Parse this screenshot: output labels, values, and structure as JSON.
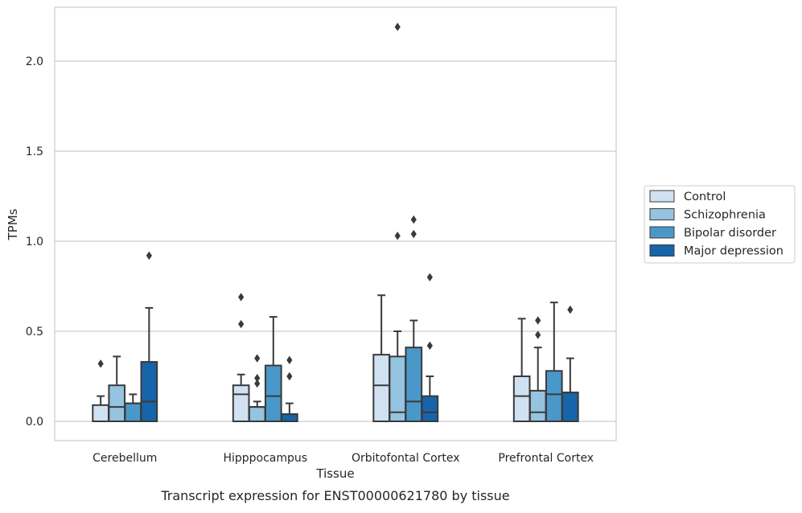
{
  "chart_data": {
    "type": "boxplot",
    "title": "Transcript expression for ENST00000621780 by tissue",
    "xlabel": "Tissue",
    "ylabel": "TPMs",
    "ylim": [
      -0.1,
      2.32
    ],
    "yticks": [
      0.0,
      0.5,
      1.0,
      1.5,
      2.0
    ],
    "ytick_labels": [
      "0.0",
      "0.5",
      "1.0",
      "1.5",
      "2.0"
    ],
    "grid": "horizontal",
    "legend_position": "right",
    "categories": [
      "Cerebellum",
      "Hipppocampus",
      "Orbitofontal Cortex",
      "Prefrontal Cortex"
    ],
    "series": [
      {
        "name": "Control",
        "color": "#d0e1f2",
        "boxes": [
          {
            "whislo": 0.0,
            "q1": 0.0,
            "med": 0.0,
            "q3": 0.09,
            "whishi": 0.14,
            "fliers": [
              0.32
            ]
          },
          {
            "whislo": 0.0,
            "q1": 0.0,
            "med": 0.15,
            "q3": 0.2,
            "whishi": 0.26,
            "fliers": [
              0.54,
              0.69
            ]
          },
          {
            "whislo": 0.0,
            "q1": 0.0,
            "med": 0.2,
            "q3": 0.37,
            "whishi": 0.7,
            "fliers": []
          },
          {
            "whislo": 0.0,
            "q1": 0.0,
            "med": 0.14,
            "q3": 0.25,
            "whishi": 0.57,
            "fliers": []
          }
        ]
      },
      {
        "name": "Schizophrenia",
        "color": "#94c4df",
        "boxes": [
          {
            "whislo": 0.0,
            "q1": 0.0,
            "med": 0.08,
            "q3": 0.2,
            "whishi": 0.36,
            "fliers": []
          },
          {
            "whislo": 0.0,
            "q1": 0.0,
            "med": 0.08,
            "q3": 0.08,
            "whishi": 0.11,
            "fliers": [
              0.21,
              0.24,
              0.35
            ]
          },
          {
            "whislo": 0.0,
            "q1": 0.0,
            "med": 0.05,
            "q3": 0.36,
            "whishi": 0.5,
            "fliers": [
              1.03,
              2.19
            ]
          },
          {
            "whislo": 0.0,
            "q1": 0.0,
            "med": 0.05,
            "q3": 0.17,
            "whishi": 0.41,
            "fliers": [
              0.48,
              0.56
            ]
          }
        ]
      },
      {
        "name": "Bipolar disorder",
        "color": "#4a98c9",
        "boxes": [
          {
            "whislo": 0.0,
            "q1": 0.0,
            "med": 0.1,
            "q3": 0.1,
            "whishi": 0.15,
            "fliers": []
          },
          {
            "whislo": 0.0,
            "q1": 0.0,
            "med": 0.14,
            "q3": 0.31,
            "whishi": 0.58,
            "fliers": []
          },
          {
            "whislo": 0.0,
            "q1": 0.0,
            "med": 0.11,
            "q3": 0.41,
            "whishi": 0.56,
            "fliers": [
              1.04,
              1.12
            ]
          },
          {
            "whislo": 0.0,
            "q1": 0.0,
            "med": 0.15,
            "q3": 0.28,
            "whishi": 0.66,
            "fliers": []
          }
        ]
      },
      {
        "name": "Major depression",
        "color": "#1764ab",
        "boxes": [
          {
            "whislo": 0.0,
            "q1": 0.0,
            "med": 0.11,
            "q3": 0.33,
            "whishi": 0.63,
            "fliers": [
              0.92
            ]
          },
          {
            "whislo": 0.0,
            "q1": 0.0,
            "med": 0.04,
            "q3": 0.04,
            "whishi": 0.1,
            "fliers": [
              0.25,
              0.34
            ]
          },
          {
            "whislo": 0.0,
            "q1": 0.0,
            "med": 0.05,
            "q3": 0.14,
            "whishi": 0.25,
            "fliers": [
              0.42,
              0.8
            ]
          },
          {
            "whislo": 0.0,
            "q1": 0.0,
            "med": 0.16,
            "q3": 0.16,
            "whishi": 0.35,
            "fliers": [
              0.62
            ]
          }
        ]
      }
    ]
  }
}
